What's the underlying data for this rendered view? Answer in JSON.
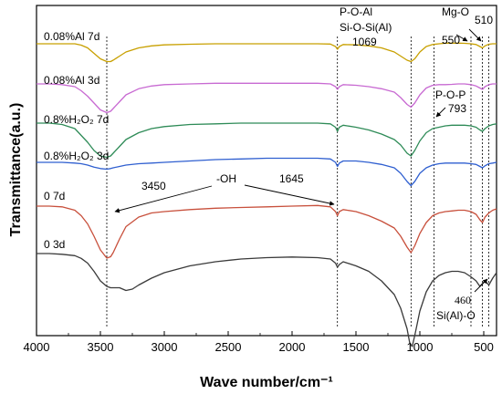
{
  "chart_data": {
    "type": "line",
    "title": "",
    "xlabel": "Wave number/cm⁻¹",
    "ylabel": "Transmittance(a.u.)",
    "xlim": [
      4000,
      400
    ],
    "x_reversed": true,
    "xticks": [
      "4000",
      "3500",
      "3000",
      "2500",
      "2000",
      "1500",
      "1000",
      "500"
    ],
    "y_ticks_shown": false,
    "grid": false,
    "legend": "none",
    "series": [
      {
        "name": "0.08%Al 7d",
        "color": "#c8a000",
        "x": [
          4000,
          3900,
          3800,
          3700,
          3650,
          3600,
          3550,
          3500,
          3450,
          3420,
          3400,
          3350,
          3300,
          3200,
          3100,
          3000,
          2800,
          2600,
          2400,
          2200,
          2000,
          1800,
          1700,
          1660,
          1645,
          1630,
          1600,
          1500,
          1400,
          1300,
          1200,
          1150,
          1100,
          1069,
          1040,
          1000,
          950,
          900,
          850,
          800,
          750,
          700,
          650,
          600,
          560,
          530,
          510,
          490,
          460,
          430,
          400
        ],
        "y": [
          0.0,
          0.0,
          0.0,
          0.0,
          1.0,
          3.0,
          7.0,
          11.0,
          13.0,
          13.0,
          12.0,
          9.0,
          6.0,
          3.0,
          1.5,
          0.8,
          0.3,
          0.0,
          0.0,
          0.0,
          0.0,
          0.0,
          0.2,
          2.0,
          4.0,
          2.0,
          0.5,
          0.8,
          1.5,
          3.0,
          6.0,
          9.0,
          12.0,
          13.0,
          11.0,
          6.0,
          2.0,
          0.5,
          0.0,
          -0.5,
          -0.5,
          -0.5,
          -0.3,
          0.0,
          0.5,
          2.0,
          3.0,
          1.5,
          0.3,
          0.0,
          0.0
        ]
      },
      {
        "name": "0.08%Al 3d",
        "color": "#c86ad2",
        "x": [
          4000,
          3900,
          3800,
          3700,
          3650,
          3600,
          3550,
          3500,
          3450,
          3420,
          3400,
          3350,
          3300,
          3200,
          3100,
          3000,
          2800,
          2600,
          2400,
          2200,
          2000,
          1800,
          1700,
          1660,
          1645,
          1630,
          1600,
          1500,
          1400,
          1300,
          1200,
          1150,
          1100,
          1069,
          1040,
          1000,
          950,
          900,
          850,
          800,
          750,
          700,
          650,
          600,
          560,
          530,
          510,
          490,
          460,
          430,
          400
        ],
        "y": [
          0.0,
          0.0,
          0.5,
          2.0,
          5.0,
          9.0,
          14.0,
          19.0,
          21.0,
          20.0,
          18.0,
          13.0,
          8.0,
          3.5,
          1.5,
          0.5,
          0.0,
          -0.5,
          -0.5,
          -0.5,
          -0.5,
          -0.5,
          0.0,
          2.0,
          4.0,
          2.0,
          0.5,
          1.0,
          2.0,
          3.5,
          6.0,
          10.0,
          15.0,
          17.0,
          14.0,
          8.0,
          3.0,
          1.0,
          0.5,
          0.5,
          0.3,
          0.0,
          0.0,
          0.5,
          1.5,
          3.0,
          4.0,
          2.0,
          0.5,
          0.0,
          0.0
        ]
      },
      {
        "name": "0.8%H₂O₂ 7d",
        "color": "#2e8b57",
        "x": [
          4000,
          3900,
          3800,
          3700,
          3650,
          3600,
          3550,
          3500,
          3450,
          3420,
          3400,
          3350,
          3300,
          3200,
          3100,
          3000,
          2800,
          2600,
          2400,
          2200,
          2000,
          1800,
          1700,
          1660,
          1645,
          1630,
          1600,
          1500,
          1400,
          1300,
          1200,
          1150,
          1100,
          1069,
          1040,
          1000,
          950,
          900,
          850,
          800,
          750,
          700,
          650,
          600,
          560,
          530,
          510,
          490,
          460,
          430,
          400
        ],
        "y": [
          0.0,
          0.0,
          1.0,
          4.0,
          9.0,
          14.0,
          20.0,
          24.0,
          25.0,
          24.0,
          22.0,
          17.0,
          12.0,
          7.0,
          4.0,
          2.5,
          1.0,
          0.5,
          0.0,
          0.0,
          0.0,
          0.0,
          0.5,
          3.0,
          6.0,
          3.0,
          1.5,
          3.0,
          5.0,
          8.0,
          12.0,
          16.0,
          22.0,
          24.0,
          20.0,
          13.0,
          7.0,
          4.0,
          3.0,
          2.0,
          1.5,
          1.5,
          1.5,
          2.0,
          3.0,
          5.0,
          6.0,
          4.0,
          2.0,
          1.0,
          0.5
        ]
      },
      {
        "name": "0.8%H₂O₂ 3d",
        "color": "#2f5fd0",
        "x": [
          4000,
          3900,
          3800,
          3700,
          3650,
          3600,
          3550,
          3500,
          3450,
          3420,
          3400,
          3350,
          3300,
          3200,
          3100,
          3000,
          2800,
          2600,
          2400,
          2200,
          2000,
          1800,
          1700,
          1660,
          1645,
          1630,
          1600,
          1500,
          1400,
          1300,
          1200,
          1150,
          1100,
          1069,
          1040,
          1000,
          950,
          900,
          850,
          800,
          750,
          700,
          650,
          600,
          560,
          530,
          510,
          490,
          460,
          430,
          400
        ],
        "y": [
          0.0,
          0.0,
          0.0,
          0.5,
          1.0,
          2.0,
          3.5,
          4.5,
          5.0,
          4.5,
          4.0,
          3.0,
          2.0,
          1.0,
          0.5,
          0.0,
          -1.0,
          -2.0,
          -2.5,
          -3.0,
          -3.0,
          -3.0,
          -2.5,
          0.0,
          3.0,
          0.5,
          -1.0,
          -1.0,
          0.0,
          1.5,
          4.0,
          8.0,
          14.0,
          17.0,
          14.0,
          8.0,
          4.0,
          2.0,
          1.0,
          0.5,
          0.5,
          0.5,
          0.5,
          1.0,
          1.5,
          3.0,
          4.0,
          2.5,
          1.0,
          0.5,
          0.0
        ]
      },
      {
        "name": "0 7d",
        "color": "#c8503c",
        "x": [
          4000,
          3900,
          3800,
          3700,
          3650,
          3600,
          3550,
          3500,
          3450,
          3420,
          3400,
          3350,
          3300,
          3200,
          3100,
          3000,
          2800,
          2600,
          2400,
          2200,
          2000,
          1800,
          1700,
          1660,
          1645,
          1630,
          1600,
          1500,
          1400,
          1300,
          1200,
          1150,
          1100,
          1069,
          1040,
          1000,
          950,
          900,
          850,
          800,
          750,
          700,
          650,
          600,
          560,
          530,
          510,
          490,
          460,
          430,
          400
        ],
        "y": [
          0.0,
          0.0,
          0.5,
          3.0,
          7.0,
          13.0,
          22.0,
          32.0,
          38.0,
          37.0,
          34.0,
          24.0,
          15.0,
          8.0,
          5.0,
          4.0,
          2.5,
          1.5,
          1.0,
          0.5,
          0.0,
          -0.5,
          0.5,
          4.0,
          7.0,
          4.0,
          2.5,
          4.0,
          7.0,
          11.0,
          16.0,
          22.0,
          30.0,
          34.0,
          29.0,
          20.0,
          12.0,
          7.0,
          5.0,
          4.0,
          3.5,
          3.0,
          3.0,
          4.0,
          6.0,
          10.0,
          12.0,
          8.0,
          5.0,
          3.0,
          2.0
        ]
      },
      {
        "name": "0 3d",
        "color": "#3a3a3a",
        "x": [
          4000,
          3900,
          3800,
          3700,
          3650,
          3600,
          3550,
          3500,
          3450,
          3420,
          3400,
          3350,
          3300,
          3250,
          3200,
          3100,
          3000,
          2800,
          2600,
          2400,
          2200,
          2000,
          1800,
          1700,
          1660,
          1645,
          1630,
          1600,
          1500,
          1400,
          1300,
          1200,
          1150,
          1100,
          1080,
          1060,
          1040,
          1000,
          950,
          900,
          850,
          800,
          750,
          700,
          650,
          600,
          560,
          530,
          510,
          490,
          460,
          430,
          400
        ],
        "y": [
          0.0,
          0.0,
          0.5,
          1.5,
          3.5,
          7.0,
          13.0,
          20.0,
          24.0,
          25.0,
          25.0,
          25.0,
          27.0,
          26.0,
          23.0,
          18.0,
          14.0,
          9.0,
          6.0,
          4.0,
          3.0,
          2.5,
          3.0,
          4.0,
          7.0,
          10.0,
          8.0,
          6.0,
          9.0,
          13.0,
          20.0,
          30.0,
          40.0,
          55.0,
          65.0,
          68.0,
          60.0,
          42.0,
          28.0,
          20.0,
          16.0,
          14.0,
          13.0,
          13.0,
          14.0,
          17.0,
          20.0,
          24.0,
          22.0,
          20.0,
          23.0,
          18.0,
          14.0
        ]
      }
    ],
    "labels": [
      "0.08%Al 7d",
      "0.08%Al 3d",
      "0.8%H₂O₂ 7d",
      "0.8%H₂O₂ 3d",
      "0 7d",
      "0 3d"
    ],
    "reference_lines": [
      3450,
      1645,
      1069,
      890,
      600,
      510,
      460
    ],
    "annotations": {
      "oh": "-OH",
      "oh_left": "3450",
      "oh_right": "1645",
      "poal": "P-O-Al",
      "siosi": "Si-O-Si(Al)",
      "siosi_val": "1069",
      "mgo": "Mg-O",
      "mgo_val": "510",
      "val550": "550",
      "pop": "P-O-P",
      "pop_val": "793",
      "sialo_val": "460",
      "sialo": "Si(Al)-O"
    }
  }
}
